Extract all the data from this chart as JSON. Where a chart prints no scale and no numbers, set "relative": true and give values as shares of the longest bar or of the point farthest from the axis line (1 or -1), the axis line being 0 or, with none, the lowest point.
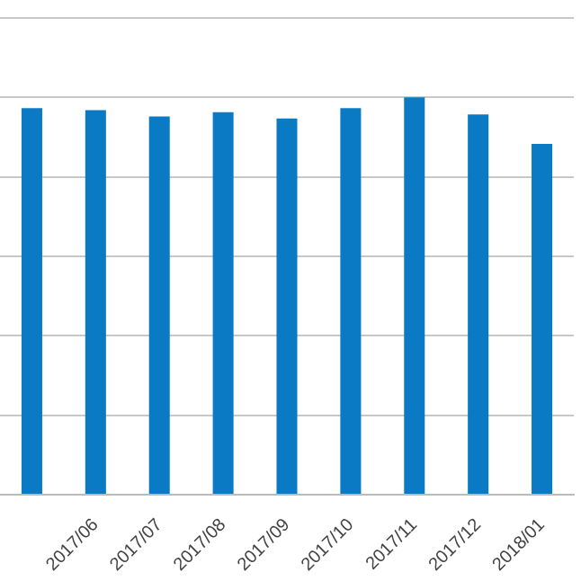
{
  "chart_data": {
    "type": "bar",
    "relative": true,
    "categories": [
      null,
      "2017/06",
      "2017/07",
      "2017/08",
      "2017/09",
      "2017/10",
      "2017/11",
      "2017/12",
      "2018/01"
    ],
    "values": [
      0.973,
      0.968,
      0.952,
      0.963,
      0.947,
      0.973,
      1,
      0.957,
      0.883
    ],
    "color": "#0a7ac4",
    "grid": "y"
  }
}
